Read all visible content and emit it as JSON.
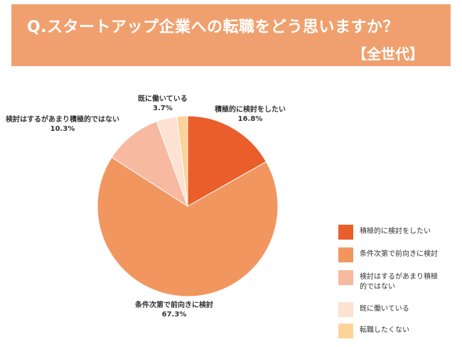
{
  "header": {
    "title": "Q.スタートアップ企業への転職をどう思いますか？",
    "subtitle": "【全世代】"
  },
  "colors": {
    "banner": "#f0a06e",
    "slice_1": "#ea5e2b",
    "slice_2": "#f29660",
    "slice_3": "#f7b9a0",
    "slice_4": "#fde1d2",
    "slice_5": "#fcd49a"
  },
  "chart_data": {
    "type": "pie",
    "title": "Q.スタートアップ企業への転職をどう思いますか？",
    "subtitle": "【全世代】",
    "legend_position": "right",
    "slices": [
      {
        "label": "積極的に検討をしたい",
        "value": 16.8,
        "value_label": "16.8%",
        "color": "#ea5e2b"
      },
      {
        "label": "条件次第で前向きに検討",
        "value": 67.3,
        "value_label": "67.3%",
        "color": "#f29660"
      },
      {
        "label": "検討はするがあまり積極的ではない",
        "value": 10.3,
        "value_label": "10.3%",
        "color": "#f7b9a0"
      },
      {
        "label": "既に働いている",
        "value": 3.7,
        "value_label": "3.7%",
        "color": "#fde1d2"
      },
      {
        "label": "転職したくない",
        "value": 1.9,
        "value_label": "",
        "color": "#fcd49a"
      }
    ],
    "legend": [
      {
        "label": "積極的に検討をしたい",
        "color": "#ea5e2b"
      },
      {
        "label": "条件次第で前向きに検討",
        "color": "#f29660"
      },
      {
        "label": "検討はするがあまり積極\n的ではない",
        "color": "#f7b9a0"
      },
      {
        "label": "既に働いている",
        "color": "#fde1d2"
      },
      {
        "label": "転職したくない",
        "color": "#fcd49a"
      }
    ]
  }
}
